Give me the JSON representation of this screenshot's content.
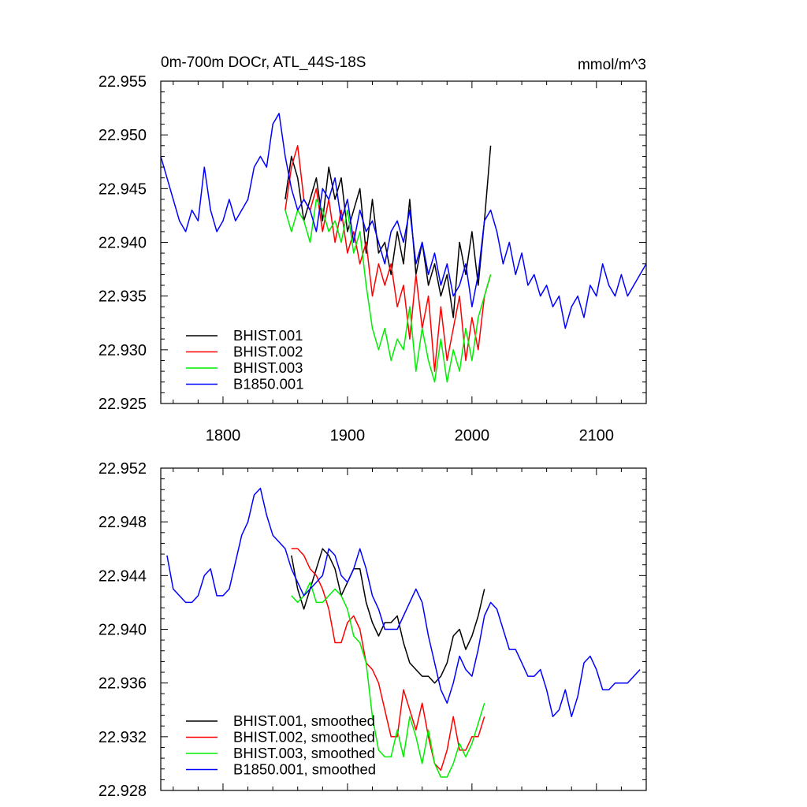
{
  "chart_data": [
    {
      "type": "line",
      "title": "0m-700m DOCr, ATL_44S-18S",
      "units": "mmol/m^3",
      "xlim": [
        1750,
        2140
      ],
      "ylim": [
        22.925,
        22.955
      ],
      "xticks": [
        1800,
        1900,
        2000,
        2100
      ],
      "xtick_labels": [
        "1800",
        "1900",
        "2000",
        "2100"
      ],
      "yticks": [
        22.925,
        22.93,
        22.935,
        22.94,
        22.945,
        22.95,
        22.955
      ],
      "ytick_labels": [
        "22.925",
        "22.930",
        "22.935",
        "22.940",
        "22.945",
        "22.950",
        "22.955"
      ],
      "legend_position": "bottom-left",
      "series": [
        {
          "name": "BHIST.001",
          "color": "#000000",
          "x": [
            1850,
            1855,
            1860,
            1865,
            1870,
            1875,
            1880,
            1885,
            1890,
            1895,
            1900,
            1905,
            1910,
            1915,
            1920,
            1925,
            1930,
            1935,
            1940,
            1945,
            1950,
            1955,
            1960,
            1965,
            1970,
            1975,
            1980,
            1985,
            1990,
            1995,
            2000,
            2005,
            2010,
            2015
          ],
          "y": [
            22.944,
            22.948,
            22.946,
            22.942,
            22.944,
            22.946,
            22.942,
            22.947,
            22.944,
            22.946,
            22.941,
            22.943,
            22.945,
            22.939,
            22.944,
            22.939,
            22.94,
            22.937,
            22.941,
            22.938,
            22.944,
            22.937,
            22.94,
            22.936,
            22.938,
            22.935,
            22.937,
            22.933,
            22.94,
            22.937,
            22.941,
            22.936,
            22.942,
            22.949
          ]
        },
        {
          "name": "BHIST.002",
          "color": "#ff0000",
          "x": [
            1850,
            1855,
            1860,
            1865,
            1870,
            1875,
            1880,
            1885,
            1890,
            1895,
            1900,
            1905,
            1910,
            1915,
            1920,
            1925,
            1930,
            1935,
            1940,
            1945,
            1950,
            1955,
            1960,
            1965,
            1970,
            1975,
            1980,
            1985,
            1990,
            1995,
            2000,
            2005,
            2010,
            2015
          ],
          "y": [
            22.943,
            22.947,
            22.949,
            22.944,
            22.943,
            22.945,
            22.941,
            22.944,
            22.94,
            22.943,
            22.939,
            22.941,
            22.938,
            22.94,
            22.935,
            22.938,
            22.936,
            22.938,
            22.934,
            22.936,
            22.931,
            22.937,
            22.932,
            22.935,
            22.928,
            22.934,
            22.929,
            22.932,
            22.935,
            22.929,
            22.933,
            22.93,
            22.935,
            22.937
          ]
        },
        {
          "name": "BHIST.003",
          "color": "#00ee00",
          "x": [
            1850,
            1855,
            1860,
            1865,
            1870,
            1875,
            1880,
            1885,
            1890,
            1895,
            1900,
            1905,
            1910,
            1915,
            1920,
            1925,
            1930,
            1935,
            1940,
            1945,
            1950,
            1955,
            1960,
            1965,
            1970,
            1975,
            1980,
            1985,
            1990,
            1995,
            2000,
            2005,
            2010,
            2015
          ],
          "y": [
            22.943,
            22.941,
            22.943,
            22.942,
            22.94,
            22.944,
            22.943,
            22.941,
            22.942,
            22.94,
            22.943,
            22.939,
            22.941,
            22.936,
            22.932,
            22.93,
            22.932,
            22.929,
            22.931,
            22.93,
            22.934,
            22.928,
            22.932,
            22.929,
            22.927,
            22.931,
            22.927,
            22.93,
            22.928,
            22.932,
            22.929,
            22.933,
            22.935,
            22.937
          ]
        },
        {
          "name": "B1850.001",
          "color": "#0000ff",
          "x": [
            1750,
            1755,
            1760,
            1765,
            1770,
            1775,
            1780,
            1785,
            1790,
            1795,
            1800,
            1805,
            1810,
            1815,
            1820,
            1825,
            1830,
            1835,
            1840,
            1845,
            1850,
            1855,
            1860,
            1865,
            1870,
            1875,
            1880,
            1885,
            1890,
            1895,
            1900,
            1905,
            1910,
            1915,
            1920,
            1925,
            1930,
            1935,
            1940,
            1945,
            1950,
            1955,
            1960,
            1965,
            1970,
            1975,
            1980,
            1985,
            1990,
            1995,
            2000,
            2005,
            2010,
            2015,
            2020,
            2025,
            2030,
            2035,
            2040,
            2045,
            2050,
            2055,
            2060,
            2065,
            2070,
            2075,
            2080,
            2085,
            2090,
            2095,
            2100,
            2105,
            2110,
            2115,
            2120,
            2125,
            2130,
            2135,
            2140
          ],
          "y": [
            22.948,
            22.946,
            22.944,
            22.942,
            22.941,
            22.943,
            22.942,
            22.947,
            22.943,
            22.941,
            22.942,
            22.944,
            22.942,
            22.943,
            22.944,
            22.947,
            22.948,
            22.947,
            22.951,
            22.952,
            22.948,
            22.945,
            22.943,
            22.944,
            22.943,
            22.941,
            22.945,
            22.944,
            22.946,
            22.942,
            22.944,
            22.94,
            22.943,
            22.941,
            22.942,
            22.94,
            22.938,
            22.941,
            22.942,
            22.94,
            22.943,
            22.938,
            22.94,
            22.937,
            22.939,
            22.936,
            22.938,
            22.935,
            22.936,
            22.938,
            22.934,
            22.937,
            22.942,
            22.943,
            22.941,
            22.938,
            22.94,
            22.937,
            22.939,
            22.936,
            22.937,
            22.935,
            22.936,
            22.934,
            22.935,
            22.932,
            22.934,
            22.935,
            22.933,
            22.936,
            22.935,
            22.938,
            22.936,
            22.935,
            22.937,
            22.935,
            22.936,
            22.937,
            22.938
          ]
        }
      ]
    },
    {
      "type": "line",
      "xlim": [
        1750,
        2140
      ],
      "ylim": [
        22.928,
        22.952
      ],
      "xticks": [
        1800,
        1900,
        2000,
        2100
      ],
      "yticks": [
        22.928,
        22.932,
        22.936,
        22.94,
        22.944,
        22.948,
        22.952
      ],
      "ytick_labels": [
        "22.928",
        "22.932",
        "22.936",
        "22.940",
        "22.944",
        "22.948",
        "22.952"
      ],
      "legend_position": "bottom-left",
      "series": [
        {
          "name": "BHIST.001, smoothed",
          "color": "#000000",
          "x": [
            1855,
            1860,
            1865,
            1870,
            1875,
            1880,
            1885,
            1890,
            1895,
            1900,
            1905,
            1910,
            1915,
            1920,
            1925,
            1930,
            1935,
            1940,
            1945,
            1950,
            1955,
            1960,
            1965,
            1970,
            1975,
            1980,
            1985,
            1990,
            1995,
            2000,
            2005,
            2010
          ],
          "y": [
            22.9455,
            22.943,
            22.9415,
            22.943,
            22.9445,
            22.946,
            22.9455,
            22.9445,
            22.9425,
            22.9435,
            22.9445,
            22.9445,
            22.942,
            22.9405,
            22.9395,
            22.9405,
            22.9405,
            22.941,
            22.939,
            22.9375,
            22.937,
            22.9365,
            22.9365,
            22.936,
            22.9365,
            22.9375,
            22.9395,
            22.94,
            22.9385,
            22.9395,
            22.941,
            22.943
          ]
        },
        {
          "name": "BHIST.002, smoothed",
          "color": "#ff0000",
          "x": [
            1855,
            1860,
            1865,
            1870,
            1875,
            1880,
            1885,
            1890,
            1895,
            1900,
            1905,
            1910,
            1915,
            1920,
            1925,
            1930,
            1935,
            1940,
            1945,
            1950,
            1955,
            1960,
            1965,
            1970,
            1975,
            1980,
            1985,
            1990,
            1995,
            2000,
            2005,
            2010
          ],
          "y": [
            22.946,
            22.946,
            22.9455,
            22.9445,
            22.944,
            22.943,
            22.9415,
            22.939,
            22.939,
            22.9405,
            22.941,
            22.94,
            22.9375,
            22.937,
            22.936,
            22.934,
            22.932,
            22.932,
            22.9355,
            22.934,
            22.9325,
            22.9345,
            22.932,
            22.93,
            22.9295,
            22.931,
            22.9335,
            22.931,
            22.931,
            22.932,
            22.932,
            22.9335
          ]
        },
        {
          "name": "BHIST.003, smoothed",
          "color": "#00ee00",
          "x": [
            1855,
            1860,
            1865,
            1870,
            1875,
            1880,
            1885,
            1890,
            1895,
            1900,
            1905,
            1910,
            1915,
            1920,
            1925,
            1930,
            1935,
            1940,
            1945,
            1950,
            1955,
            1960,
            1965,
            1970,
            1975,
            1980,
            1985,
            1990,
            1995,
            2000,
            2005,
            2010
          ],
          "y": [
            22.9425,
            22.942,
            22.9425,
            22.9435,
            22.942,
            22.942,
            22.9425,
            22.943,
            22.9425,
            22.9415,
            22.9395,
            22.939,
            22.9375,
            22.9335,
            22.931,
            22.9305,
            22.9305,
            22.9325,
            22.9305,
            22.9335,
            22.932,
            22.93,
            22.9325,
            22.93,
            22.929,
            22.929,
            22.93,
            22.9315,
            22.9305,
            22.9315,
            22.933,
            22.9345
          ]
        },
        {
          "name": "B1850.001, smoothed",
          "color": "#0000ff",
          "x": [
            1755,
            1760,
            1765,
            1770,
            1775,
            1780,
            1785,
            1790,
            1795,
            1800,
            1805,
            1810,
            1815,
            1820,
            1825,
            1830,
            1835,
            1840,
            1845,
            1850,
            1855,
            1860,
            1865,
            1870,
            1875,
            1880,
            1885,
            1890,
            1895,
            1900,
            1905,
            1910,
            1915,
            1920,
            1925,
            1930,
            1935,
            1940,
            1945,
            1950,
            1955,
            1960,
            1965,
            1970,
            1975,
            1980,
            1985,
            1990,
            1995,
            2000,
            2005,
            2010,
            2015,
            2020,
            2025,
            2030,
            2035,
            2040,
            2045,
            2050,
            2055,
            2060,
            2065,
            2070,
            2075,
            2080,
            2085,
            2090,
            2095,
            2100,
            2105,
            2110,
            2115,
            2120,
            2125,
            2130,
            2135
          ],
          "y": [
            22.9455,
            22.943,
            22.9425,
            22.942,
            22.942,
            22.9425,
            22.944,
            22.9445,
            22.9425,
            22.9425,
            22.943,
            22.945,
            22.947,
            22.948,
            22.95,
            22.9505,
            22.9485,
            22.947,
            22.9465,
            22.946,
            22.9445,
            22.9435,
            22.9425,
            22.943,
            22.9435,
            22.944,
            22.946,
            22.9455,
            22.944,
            22.9435,
            22.9445,
            22.946,
            22.9445,
            22.9425,
            22.9415,
            22.94,
            22.94,
            22.94,
            22.941,
            22.942,
            22.943,
            22.942,
            22.9395,
            22.9375,
            22.9355,
            22.9345,
            22.936,
            22.938,
            22.937,
            22.9365,
            22.9385,
            22.941,
            22.942,
            22.9415,
            22.94,
            22.9385,
            22.9385,
            22.9375,
            22.9365,
            22.9365,
            22.937,
            22.9355,
            22.9335,
            22.934,
            22.9355,
            22.9335,
            22.935,
            22.9375,
            22.938,
            22.937,
            22.9355,
            22.9355,
            22.936,
            22.936,
            22.936,
            22.9365,
            22.937
          ]
        }
      ]
    }
  ]
}
